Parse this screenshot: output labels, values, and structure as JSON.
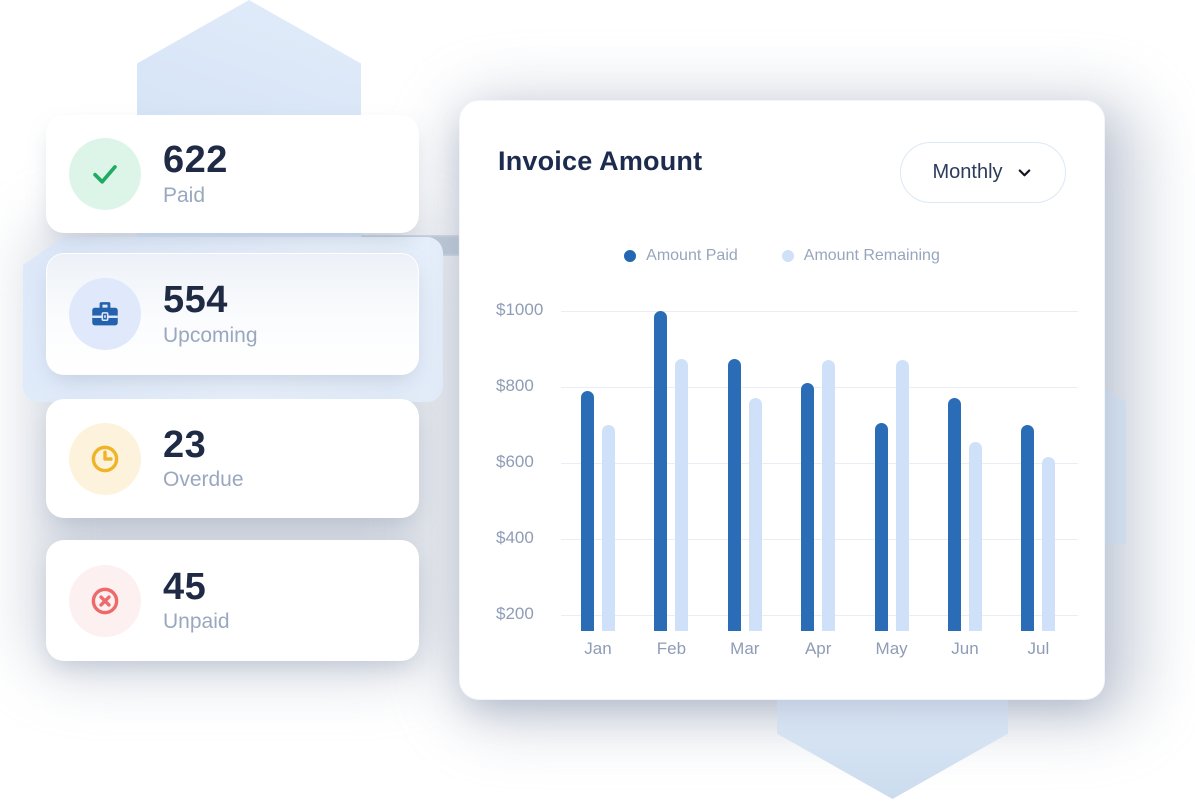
{
  "stats": {
    "cards": [
      {
        "value": "622",
        "label": "Paid",
        "icon": "check-icon",
        "icon_color": "#1fab61",
        "icon_bg": "#ddf5e8"
      },
      {
        "value": "554",
        "label": "Upcoming",
        "icon": "briefcase-icon",
        "icon_color": "#2462ae",
        "icon_bg": "#dfe9fb"
      },
      {
        "value": "23",
        "label": "Overdue",
        "icon": "clock-icon",
        "icon_color": "#f0b429",
        "icon_bg": "#fdf3dc"
      },
      {
        "value": "45",
        "label": "Unpaid",
        "icon": "x-circle-icon",
        "icon_color": "#ee6a6a",
        "icon_bg": "#fdf0f0"
      }
    ]
  },
  "chart_card": {
    "title": "Invoice Amount",
    "period_selector": {
      "value": "Monthly",
      "icon": "chevron-down-icon"
    },
    "legend": [
      {
        "label": "Amount Paid",
        "color": "#2367b3"
      },
      {
        "label": "Amount Remaining",
        "color": "#cfe1f8"
      }
    ]
  },
  "chart_data": {
    "type": "bar",
    "title": "Invoice Amount",
    "categories": [
      "Jan",
      "Feb",
      "Mar",
      "Apr",
      "May",
      "Jun",
      "Jul"
    ],
    "series": [
      {
        "name": "Amount Paid",
        "color": "#2a6cb5",
        "values": [
          790,
          1000,
          875,
          810,
          705,
          770,
          700
        ]
      },
      {
        "name": "Amount Remaining",
        "color": "#cfe1f8",
        "values": [
          700,
          875,
          770,
          870,
          870,
          655,
          615
        ]
      }
    ],
    "y_ticks": [
      "$1000",
      "$800",
      "$600",
      "$400",
      "$200"
    ],
    "y_tick_values": [
      1000,
      800,
      600,
      400,
      200
    ],
    "ylim": [
      158,
      1000
    ],
    "grid": true,
    "legend_position": "top",
    "xlabel": "",
    "ylabel": ""
  }
}
